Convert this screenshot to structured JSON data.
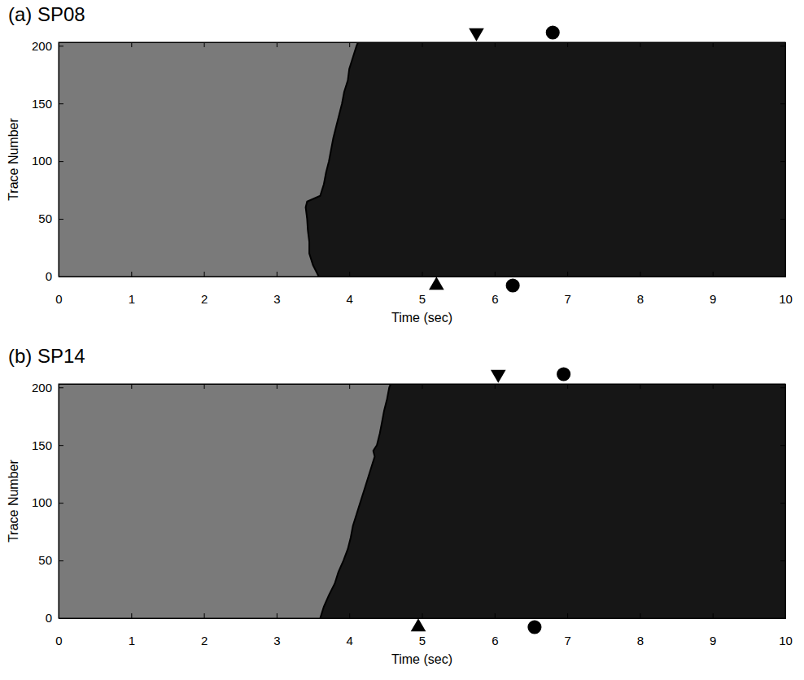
{
  "chart_data": [
    {
      "type": "line",
      "title": "(a) SP08",
      "x_label": "Time (sec)",
      "y_label": "Trace Number",
      "xlim": [
        0,
        10
      ],
      "xticks": [
        0,
        1,
        2,
        3,
        4,
        5,
        6,
        7,
        8,
        9,
        10
      ],
      "ylim": [
        0,
        203
      ],
      "yticks": [
        0,
        50,
        100,
        150,
        200
      ],
      "series": [
        {
          "color": "#000000",
          "x": [
            3.58,
            3.5,
            3.45,
            3.45,
            3.43,
            3.42,
            3.4,
            3.42,
            3.6,
            3.65,
            3.68,
            3.72,
            3.75,
            3.78,
            3.82,
            3.86,
            3.9,
            3.93,
            3.98,
            4.0,
            4.05,
            4.1,
            4.12
          ],
          "values": [
            0,
            10,
            20,
            30,
            40,
            50,
            60,
            65,
            70,
            80,
            90,
            100,
            110,
            120,
            130,
            140,
            150,
            160,
            170,
            180,
            190,
            200,
            203
          ]
        }
      ],
      "picks": {
        "top": [
          {
            "x": 5.75,
            "marker": "triangle-down"
          },
          {
            "x": 6.8,
            "marker": "circle"
          }
        ],
        "bottom": [
          {
            "x": 5.2,
            "marker": "triangle-up"
          },
          {
            "x": 6.25,
            "marker": "circle"
          }
        ]
      }
    },
    {
      "type": "line",
      "title": "(b) SP14",
      "x_label": "Time (sec)",
      "y_label": "Trace Number",
      "xlim": [
        0,
        10
      ],
      "xticks": [
        0,
        1,
        2,
        3,
        4,
        5,
        6,
        7,
        8,
        9,
        10
      ],
      "ylim": [
        0,
        203
      ],
      "yticks": [
        0,
        50,
        100,
        150,
        200
      ],
      "series": [
        {
          "color": "#000000",
          "x": [
            3.6,
            3.65,
            3.72,
            3.8,
            3.85,
            3.92,
            3.98,
            4.02,
            4.05,
            4.1,
            4.15,
            4.2,
            4.25,
            4.3,
            4.35,
            4.33,
            4.38,
            4.42,
            4.45,
            4.48,
            4.52,
            4.55,
            4.57
          ],
          "values": [
            0,
            10,
            20,
            30,
            40,
            50,
            60,
            70,
            80,
            90,
            100,
            110,
            120,
            130,
            140,
            145,
            150,
            160,
            170,
            180,
            190,
            200,
            203
          ]
        }
      ],
      "picks": {
        "top": [
          {
            "x": 6.05,
            "marker": "triangle-down"
          },
          {
            "x": 6.95,
            "marker": "circle"
          }
        ],
        "bottom": [
          {
            "x": 4.95,
            "marker": "triangle-up"
          },
          {
            "x": 6.55,
            "marker": "circle"
          }
        ]
      }
    }
  ]
}
